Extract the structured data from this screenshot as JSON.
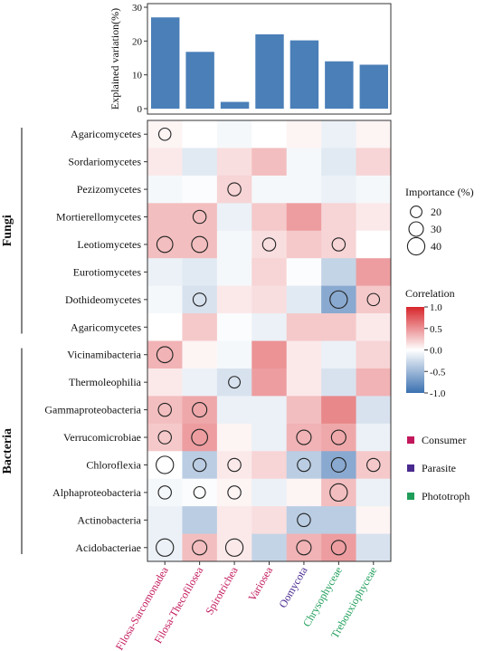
{
  "chart_data": [
    {
      "type": "bar",
      "ylabel": "Explained variation(%)",
      "ylim": [
        0,
        30
      ],
      "yticks": [
        0,
        10,
        20,
        30
      ],
      "categories": [
        "Filosa-Sarcomonadea",
        "Filosa-Thecofilosea",
        "Spirotrichea",
        "Variosea",
        "Oomycota",
        "Chrysophyceae",
        "Trebouxiophyceae"
      ],
      "values": [
        27,
        16.8,
        2,
        22,
        20.2,
        14,
        13
      ],
      "color": "#4a7fb8",
      "grid": false
    },
    {
      "type": "heatmap",
      "columns": [
        "Filosa-Sarcomonadea",
        "Filosa-Thecofilosea",
        "Spirotrichea",
        "Variosea",
        "Oomycota",
        "Chrysophyceae",
        "Trebouxiophyceae"
      ],
      "column_groups": [
        "Consumer",
        "Consumer",
        "Consumer",
        "Consumer",
        "Parasite",
        "Phototroph",
        "Phototroph"
      ],
      "rows": [
        "Agaricomycetes",
        "Sordariomycetes",
        "Pezizomycetes",
        "Mortierellomycetes",
        "Leotiomycetes",
        "Eurotiomycetes",
        "Dothideomycetes",
        "Agaricomycetes",
        "Vicinamibacteria",
        "Thermoleophilia",
        "Gammaproteobacteria",
        "Verrucomicrobiae",
        "Chloroflexia",
        "Alphaproteobacteria",
        "Actinobacteria",
        "Acidobacteriae"
      ],
      "row_groups": [
        {
          "label": "Fungi",
          "start": 0,
          "end": 7
        },
        {
          "label": "Bacteria",
          "start": 8,
          "end": 15
        }
      ],
      "correlation": [
        [
          0.05,
          0.0,
          -0.05,
          0.0,
          0.05,
          -0.1,
          0.05
        ],
        [
          0.1,
          -0.15,
          0.15,
          0.3,
          -0.05,
          -0.15,
          0.2
        ],
        [
          -0.05,
          -0.02,
          0.2,
          -0.05,
          -0.05,
          -0.1,
          -0.05
        ],
        [
          0.3,
          0.3,
          -0.1,
          0.25,
          0.45,
          0.2,
          0.1
        ],
        [
          0.3,
          0.3,
          -0.05,
          0.15,
          0.25,
          0.2,
          0.0
        ],
        [
          -0.1,
          -0.15,
          -0.05,
          0.2,
          -0.02,
          -0.3,
          0.45
        ],
        [
          -0.05,
          -0.2,
          0.1,
          0.15,
          -0.15,
          -0.6,
          0.25
        ],
        [
          0.0,
          0.25,
          -0.02,
          -0.1,
          0.25,
          0.25,
          0.1
        ],
        [
          0.35,
          0.05,
          -0.05,
          0.5,
          0.1,
          -0.1,
          0.2
        ],
        [
          0.1,
          -0.1,
          -0.2,
          0.45,
          0.1,
          -0.2,
          0.35
        ],
        [
          0.3,
          0.4,
          -0.1,
          -0.1,
          0.3,
          0.55,
          -0.2
        ],
        [
          0.25,
          0.45,
          0.05,
          -0.1,
          0.35,
          0.4,
          -0.1
        ],
        [
          0.0,
          -0.35,
          0.1,
          0.2,
          -0.35,
          -0.6,
          0.25
        ],
        [
          -0.05,
          -0.02,
          0.05,
          -0.1,
          0.05,
          0.3,
          -0.1
        ],
        [
          -0.1,
          -0.35,
          0.1,
          0.15,
          -0.35,
          -0.35,
          0.05
        ],
        [
          -0.1,
          0.3,
          0.1,
          -0.3,
          0.35,
          0.45,
          -0.2
        ]
      ],
      "importance": [
        [
          22,
          null,
          null,
          null,
          null,
          null,
          null
        ],
        [
          null,
          null,
          null,
          null,
          null,
          null,
          null
        ],
        [
          null,
          null,
          25,
          null,
          null,
          null,
          null
        ],
        [
          null,
          25,
          null,
          null,
          null,
          null,
          null
        ],
        [
          35,
          35,
          null,
          25,
          null,
          25,
          null
        ],
        [
          null,
          null,
          null,
          null,
          null,
          null,
          null
        ],
        [
          null,
          25,
          null,
          null,
          null,
          40,
          22
        ],
        [
          null,
          null,
          null,
          null,
          null,
          null,
          null
        ],
        [
          35,
          null,
          null,
          null,
          null,
          null,
          null
        ],
        [
          null,
          null,
          20,
          null,
          null,
          null,
          null
        ],
        [
          25,
          30,
          null,
          null,
          null,
          null,
          null
        ],
        [
          25,
          35,
          null,
          null,
          30,
          30,
          null
        ],
        [
          40,
          25,
          25,
          null,
          25,
          30,
          25
        ],
        [
          25,
          20,
          25,
          null,
          null,
          40,
          null
        ],
        [
          null,
          null,
          null,
          null,
          25,
          null,
          null
        ],
        [
          40,
          30,
          40,
          null,
          30,
          30,
          null
        ]
      ],
      "size_legend": {
        "title": "Importance (%)",
        "values": [
          20,
          30,
          40
        ],
        "labels": [
          "20",
          "30",
          "40"
        ]
      },
      "color_legend": {
        "title": "Correlation",
        "range": [
          -1,
          1
        ],
        "ticks": [
          "1.0",
          "0.5",
          "0.0",
          "-0.5",
          "-1.0"
        ],
        "low_color": "#3a70b0",
        "mid_color": "#ffffff",
        "high_color": "#d7262b"
      },
      "group_legend": [
        {
          "label": "Consumer",
          "color": "#c2185b"
        },
        {
          "label": "Parasite",
          "color": "#4a2a8f"
        },
        {
          "label": "Phototroph",
          "color": "#1f9e5a"
        }
      ]
    }
  ]
}
